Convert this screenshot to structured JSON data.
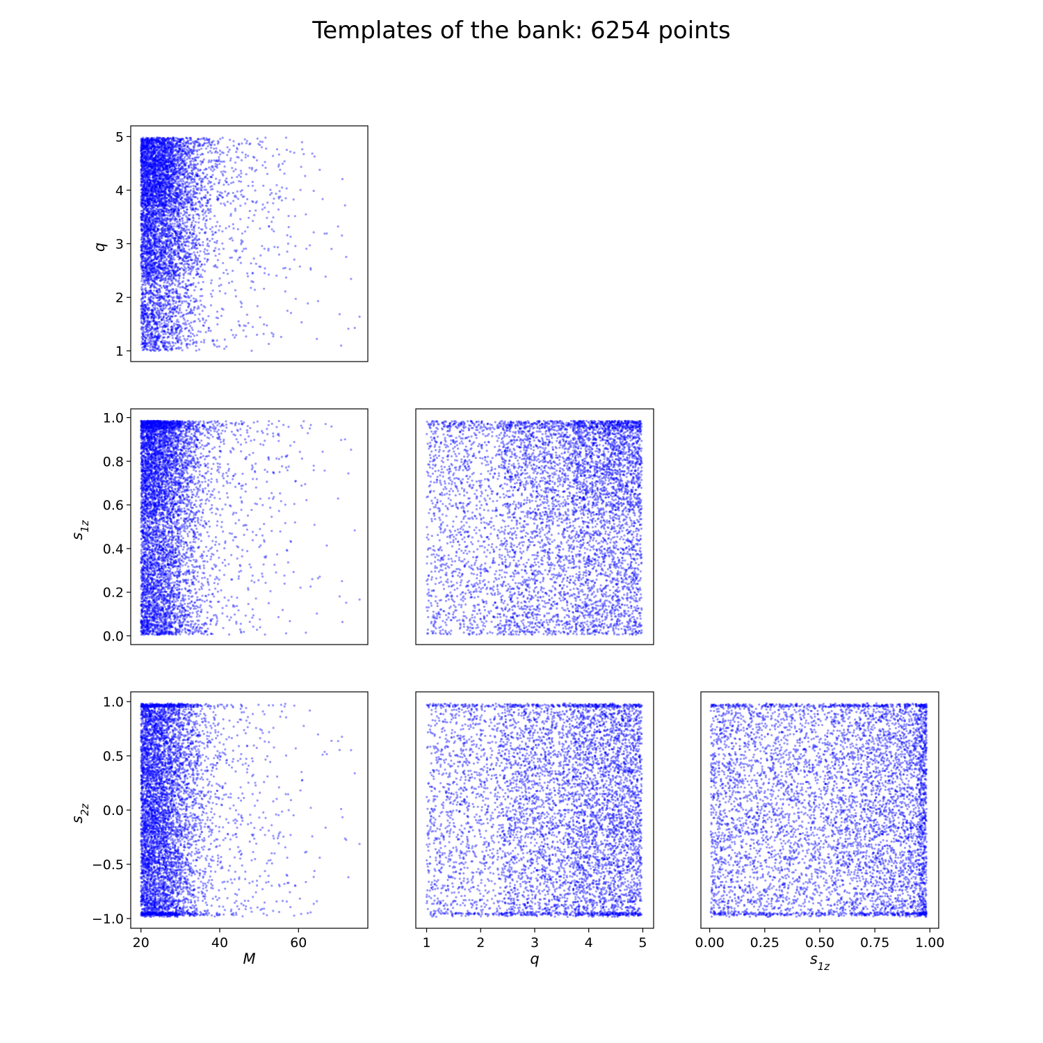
{
  "title": "Templates of the bank: 6254 points",
  "colors": {
    "points": "#0000ff",
    "axes": "#000000",
    "background": "#ffffff"
  },
  "chart_data": [
    {
      "type": "scatter",
      "panel": "M-vs-q",
      "title": "",
      "xvar": "M",
      "yvar": "q",
      "xlabel": "",
      "ylabel": "q",
      "ylabel_sub": "",
      "xlim": [
        17.4,
        77.6
      ],
      "ylim": [
        0.8,
        5.2
      ],
      "xticks": [],
      "xticklabels": [],
      "yticks": [
        1,
        2,
        3,
        4,
        5
      ],
      "yticklabels": [
        "1",
        "2",
        "3",
        "4",
        "5"
      ],
      "n_points": 6254,
      "point_alpha": 0.4
    },
    {
      "type": "scatter",
      "panel": "M-vs-s1z",
      "title": "",
      "xvar": "M",
      "yvar": "s1z",
      "xlabel": "",
      "ylabel": "s",
      "ylabel_sub": "1z",
      "xlim": [
        17.4,
        77.6
      ],
      "ylim": [
        -0.04,
        1.04
      ],
      "xticks": [],
      "xticklabels": [],
      "yticks": [
        0.0,
        0.2,
        0.4,
        0.6,
        0.8,
        1.0
      ],
      "yticklabels": [
        "0.0",
        "0.2",
        "0.4",
        "0.6",
        "0.8",
        "1.0"
      ],
      "n_points": 6254,
      "point_alpha": 0.4
    },
    {
      "type": "scatter",
      "panel": "q-vs-s1z",
      "title": "",
      "xvar": "q",
      "yvar": "s1z",
      "xlabel": "",
      "ylabel": "",
      "ylabel_sub": "",
      "xlim": [
        0.8,
        5.2
      ],
      "ylim": [
        -0.04,
        1.04
      ],
      "xticks": [],
      "xticklabels": [],
      "yticks": [],
      "yticklabels": [],
      "n_points": 6254,
      "point_alpha": 0.4
    },
    {
      "type": "scatter",
      "panel": "M-vs-s2z",
      "title": "",
      "xvar": "M",
      "yvar": "s2z",
      "xlabel": "M",
      "xlabel_sub": "",
      "ylabel": "s",
      "ylabel_sub": "2z",
      "xlim": [
        17.4,
        77.6
      ],
      "ylim": [
        -1.09,
        1.09
      ],
      "xticks": [
        20,
        40,
        60
      ],
      "xticklabels": [
        "20",
        "40",
        "60"
      ],
      "yticks": [
        -1.0,
        -0.5,
        0.0,
        0.5,
        1.0
      ],
      "yticklabels": [
        "−1.0",
        "−0.5",
        "0.0",
        "0.5",
        "1.0"
      ],
      "n_points": 6254,
      "point_alpha": 0.4
    },
    {
      "type": "scatter",
      "panel": "q-vs-s2z",
      "title": "",
      "xvar": "q",
      "yvar": "s2z",
      "xlabel": "q",
      "xlabel_sub": "",
      "ylabel": "",
      "ylabel_sub": "",
      "xlim": [
        0.8,
        5.2
      ],
      "ylim": [
        -1.09,
        1.09
      ],
      "xticks": [
        1,
        2,
        3,
        4,
        5
      ],
      "xticklabels": [
        "1",
        "2",
        "3",
        "4",
        "5"
      ],
      "yticks": [],
      "yticklabels": [],
      "n_points": 6254,
      "point_alpha": 0.4
    },
    {
      "type": "scatter",
      "panel": "s1z-vs-s2z",
      "title": "",
      "xvar": "s1z",
      "yvar": "s2z",
      "xlabel": "s",
      "xlabel_sub": "1z",
      "ylabel": "",
      "ylabel_sub": "",
      "xlim": [
        -0.04,
        1.04
      ],
      "ylim": [
        -1.09,
        1.09
      ],
      "xticks": [
        0.0,
        0.25,
        0.5,
        0.75,
        1.0
      ],
      "xticklabels": [
        "0.00",
        "0.25",
        "0.50",
        "0.75",
        "1.00"
      ],
      "yticks": [],
      "yticklabels": [],
      "n_points": 6254,
      "point_alpha": 0.4
    }
  ]
}
